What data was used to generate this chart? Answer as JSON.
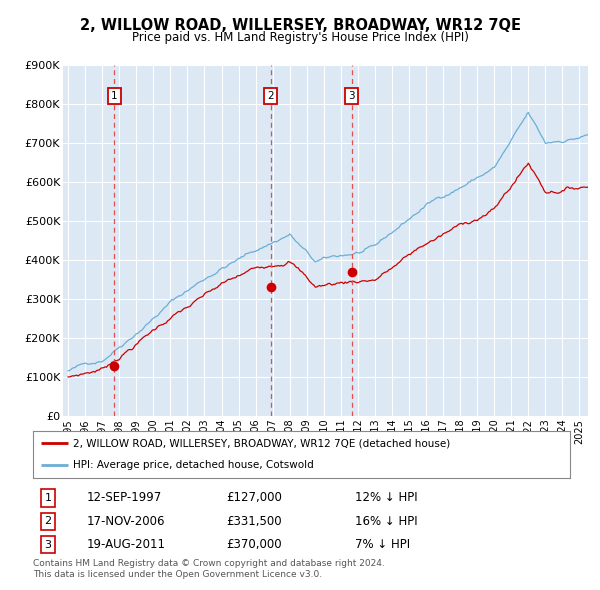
{
  "title": "2, WILLOW ROAD, WILLERSEY, BROADWAY, WR12 7QE",
  "subtitle": "Price paid vs. HM Land Registry's House Price Index (HPI)",
  "ylabel_ticks": [
    "£0",
    "£100K",
    "£200K",
    "£300K",
    "£400K",
    "£500K",
    "£600K",
    "£700K",
    "£800K",
    "£900K"
  ],
  "ytick_values": [
    0,
    100000,
    200000,
    300000,
    400000,
    500000,
    600000,
    700000,
    800000,
    900000
  ],
  "ylim": [
    0,
    900000
  ],
  "xlim_start": 1994.7,
  "xlim_end": 2025.5,
  "background_color": "#dce9f5",
  "grid_color": "#ffffff",
  "sale_dates": [
    1997.71,
    2006.88,
    2011.63
  ],
  "sale_prices": [
    127000,
    331500,
    370000
  ],
  "sale_labels": [
    "1",
    "2",
    "3"
  ],
  "sale_date_strs": [
    "12-SEP-1997",
    "17-NOV-2006",
    "19-AUG-2011"
  ],
  "sale_price_strs": [
    "£127,000",
    "£331,500",
    "£370,000"
  ],
  "sale_hpi_strs": [
    "12% ↓ HPI",
    "16% ↓ HPI",
    "7% ↓ HPI"
  ],
  "legend_house_label": "2, WILLOW ROAD, WILLERSEY, BROADWAY, WR12 7QE (detached house)",
  "legend_hpi_label": "HPI: Average price, detached house, Cotswold",
  "footer_text": "Contains HM Land Registry data © Crown copyright and database right 2024.\nThis data is licensed under the Open Government Licence v3.0.",
  "house_color": "#cc0000",
  "hpi_color": "#6baed6",
  "dashed_color": "#e05050"
}
